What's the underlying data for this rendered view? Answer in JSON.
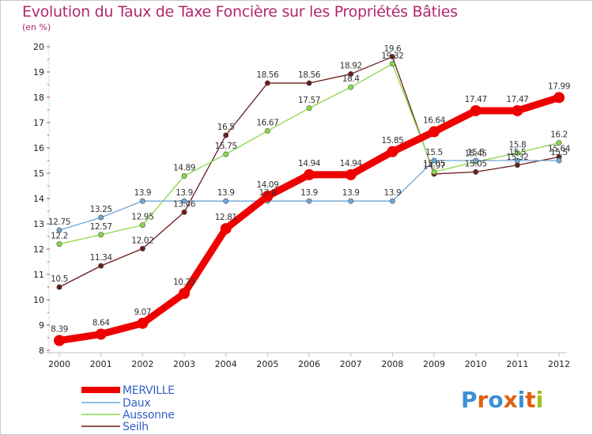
{
  "title": "Evolution du Taux de Taxe Foncière sur les Propriétés Bâties",
  "subtitle": "(en %)",
  "logo": {
    "text": "Proxiti",
    "letter_colors": [
      "#3a8fd8",
      "#e06010",
      "#3a8fd8",
      "#e06010",
      "#3a8fd8",
      "#e06010",
      "#a0c020"
    ]
  },
  "chart_data": {
    "type": "line",
    "title": "Evolution du Taux de Taxe Foncière sur les Propriétés Bâties",
    "ylabel": "(en %)",
    "xlabel": "",
    "x": [
      "2000",
      "2001",
      "2002",
      "2003",
      "2004",
      "2005",
      "2006",
      "2007",
      "2008",
      "2009",
      "2010",
      "2011",
      "2012"
    ],
    "ylim": [
      8,
      20
    ],
    "yticks": [
      "8",
      "9",
      "10",
      "11",
      "12",
      "13",
      "14",
      "15",
      "16",
      "17",
      "18",
      "19",
      "20"
    ],
    "legend_position": "bottom-left",
    "series": [
      {
        "name": "MERVILLE",
        "color": "#ee0000",
        "legend_text_color": "#3560c8",
        "values": [
          8.39,
          8.64,
          9.07,
          10.25,
          12.81,
          14.09,
          14.94,
          14.94,
          15.85,
          16.64,
          17.47,
          17.47,
          17.99
        ],
        "labels": [
          "8.39",
          "8.64",
          "9.07",
          "10.25",
          "12.81",
          "14.09",
          "14.94",
          "14.94",
          "15.85",
          "16.64",
          "17.47",
          "17.47",
          "17.99"
        ]
      },
      {
        "name": "Daux",
        "color": "#6fa6d8",
        "legend_text_color": "#3560c8",
        "values": [
          12.75,
          13.25,
          13.9,
          13.9,
          13.9,
          13.9,
          13.9,
          13.9,
          13.9,
          15.5,
          15.5,
          15.5,
          15.5
        ],
        "labels": [
          "12.75",
          "13.25",
          "13.9",
          "13.9",
          "13.9",
          "13.9",
          "13.9",
          "13.9",
          "13.9",
          "15.5",
          "15.5",
          "15.5",
          "15.5"
        ]
      },
      {
        "name": "Aussonne",
        "color": "#88d848",
        "legend_text_color": "#3560c8",
        "values": [
          12.2,
          12.57,
          12.95,
          14.89,
          15.75,
          16.67,
          17.57,
          18.4,
          19.32,
          15.05,
          15.45,
          15.8,
          16.2
        ],
        "labels": [
          "12.2",
          "12.57",
          "12.95",
          "14.89",
          "15.75",
          "16.67",
          "17.57",
          "18.4",
          "19.32",
          "15.05",
          "15.45",
          "15.8",
          "16.2"
        ]
      },
      {
        "name": "Seilh",
        "color": "#6b1c1c",
        "legend_text_color": "#3560c8",
        "values": [
          10.5,
          11.34,
          12.02,
          13.46,
          16.5,
          18.56,
          18.56,
          18.92,
          19.6,
          14.97,
          15.05,
          15.32,
          15.64
        ],
        "labels": [
          "10.5",
          "11.34",
          "12.02",
          "13.46",
          "16.5",
          "18.56",
          "18.56",
          "18.92",
          "19.6",
          "14.97",
          "15.05",
          "15.32",
          "15.64"
        ]
      }
    ]
  }
}
